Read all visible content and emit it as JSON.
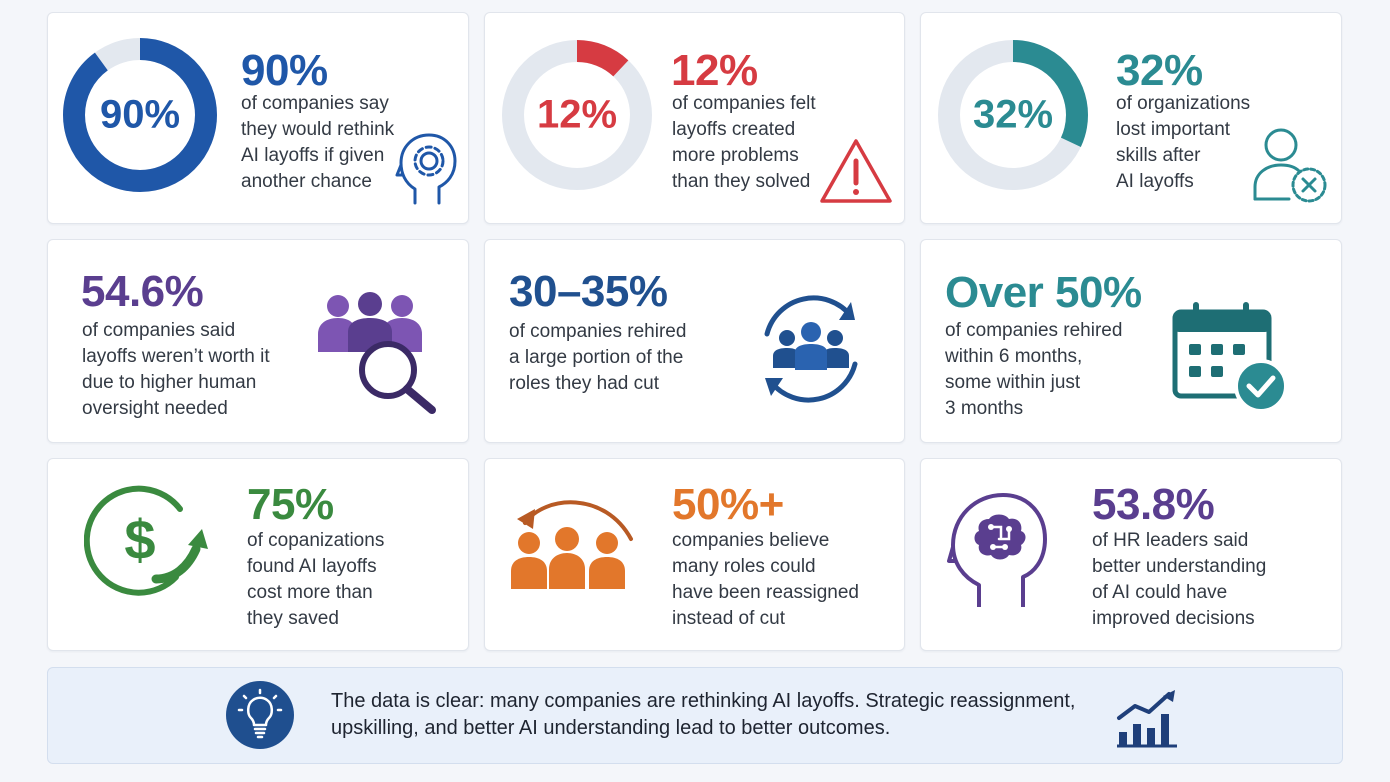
{
  "colors": {
    "blue": "#1f57a8",
    "red": "#d63b42",
    "teal": "#2b8b92",
    "purple": "#5a3e8f",
    "navy": "#20508f",
    "green": "#3a8a3f",
    "orange": "#e2772b",
    "donut_track": "#e3e8ef"
  },
  "cards": [
    {
      "value": "90%",
      "donut_label": "90%",
      "percent": 0.9,
      "lines": [
        "of companies say",
        "they would rethink",
        "AI layoffs if given",
        "another chance"
      ],
      "icon": "head-gear-icon"
    },
    {
      "value": "12%",
      "donut_label": "12%",
      "percent": 0.12,
      "lines": [
        "of companies felt",
        "layoffs created",
        "more problems",
        "than they solved"
      ],
      "icon": "warning-icon"
    },
    {
      "value": "32%",
      "donut_label": "32%",
      "percent": 0.32,
      "lines": [
        "of organizations",
        "lost important",
        "skills after",
        "AI layoffs"
      ],
      "icon": "user-remove-icon"
    },
    {
      "value": "54.6%",
      "lines": [
        "of companies said",
        "layoffs weren’t worth it",
        "due to higher human",
        "oversight needed"
      ],
      "icon": "people-search-icon"
    },
    {
      "value": "30–35%",
      "lines": [
        "of companies rehired",
        "a large portion of the",
        "roles they had cut"
      ],
      "icon": "people-cycle-icon"
    },
    {
      "value": "Over 50%",
      "lines": [
        "of companies rehired",
        "within 6 months,",
        "some within just",
        "3 months"
      ],
      "icon": "calendar-check-icon"
    },
    {
      "value": "75%",
      "lines": [
        "of copanizations",
        "found AI layoffs",
        "cost more than",
        "they saved"
      ],
      "icon": "dollar-arrow-icon"
    },
    {
      "value": "50%+",
      "lines": [
        "companies believe",
        "many roles could",
        "have been reassigned",
        "instead of cut"
      ],
      "icon": "people-reassign-icon"
    },
    {
      "value": "53.8%",
      "lines": [
        "of HR leaders said",
        "better understanding",
        "of AI could have",
        "improved decisions"
      ],
      "icon": "head-circuit-icon"
    }
  ],
  "summary": {
    "line1": "The data is clear: many companies are rethinking AI layoffs. Strategic reassignment,",
    "line2": "upskilling, and better AI understanding lead to better outcomes.",
    "left_icon": "lightbulb-icon",
    "right_icon": "growth-chart-icon"
  }
}
